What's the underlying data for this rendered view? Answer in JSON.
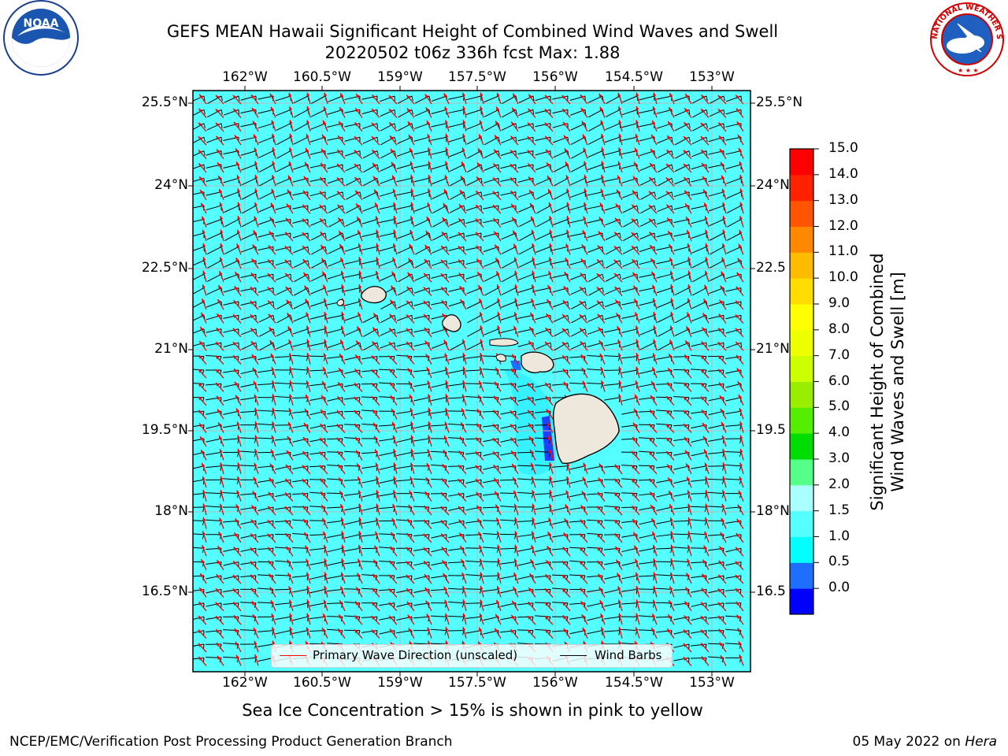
{
  "title_line1": "GEFS MEAN Hawaii Significant Height of Combined Wind Waves and Swell",
  "title_line2": "20220502 t06z 336h fcst   Max: 1.88",
  "lon_labels": [
    "162°W",
    "160.5°W",
    "159°W",
    "157.5°W",
    "156°W",
    "154.5°W",
    "153°W"
  ],
  "lat_labels": [
    "25.5°N",
    "24°N",
    "22.5°N",
    "21°N",
    "19.5°N",
    "18°N",
    "16.5°N"
  ],
  "lat_labels_right": [
    "25.5°N",
    "24°N",
    "22.5",
    "21°N",
    "19.5",
    "18°N",
    "16.5"
  ],
  "legend": {
    "wave_label": "Primary Wave Direction (unscaled)",
    "barb_label": "Wind Barbs",
    "wave_color": "#ff0000",
    "barb_color": "#000000"
  },
  "colorbar": {
    "title_line1": "Significant Height of Combined",
    "title_line2": "Wind Waves and Swell [m]",
    "ticks": [
      "15.0",
      "14.0",
      "13.0",
      "12.0",
      "11.0",
      "10.0",
      "9.0",
      "8.0",
      "7.0",
      "6.0",
      "5.0",
      "4.0",
      "3.0",
      "2.0",
      "1.5",
      "1.0",
      "0.5",
      "0.0"
    ],
    "colors_bottom_to_top": [
      "#0000ff",
      "#1e6fff",
      "#00ffff",
      "#55ffff",
      "#aaffff",
      "#55ff88",
      "#00dd00",
      "#55ee00",
      "#99ee00",
      "#ccff00",
      "#eeff00",
      "#ffff00",
      "#ffdd00",
      "#ffbb00",
      "#ff8800",
      "#ff5500",
      "#ff2200",
      "#ff0000"
    ]
  },
  "sea_color": "#55ffff",
  "land_color": "#eee8dc",
  "note": "Sea Ice Concentration > 15% is shown in pink to yellow",
  "footer_left": "NCEP/EMC/Verification Post Processing Product Generation Branch",
  "footer_right_prefix": "05 May 2022 on ",
  "footer_right_host": "Hera",
  "logos": {
    "noaa_text": "NOAA",
    "noaa_icon": "noaa-logo",
    "nws_icon": "nws-logo",
    "nws_arc_text": "NATIONAL WEATHER SERVICE"
  }
}
